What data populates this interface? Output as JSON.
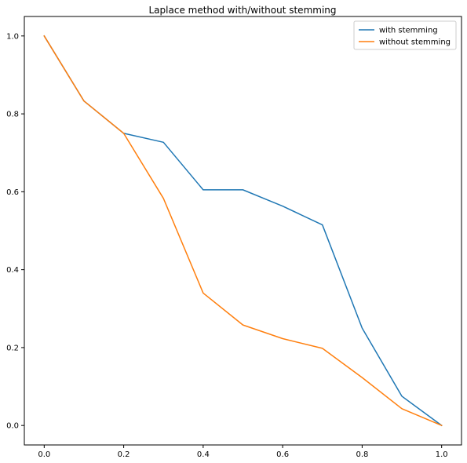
{
  "chart_data": {
    "type": "line",
    "title": "Laplace method with/without stemming",
    "xlabel": "",
    "ylabel": "",
    "xlim": [
      -0.05,
      1.05
    ],
    "ylim": [
      -0.05,
      1.05
    ],
    "xticks": [
      0.0,
      0.2,
      0.4,
      0.6,
      0.8,
      1.0
    ],
    "xtick_labels": [
      "0.0",
      "0.2",
      "0.4",
      "0.6",
      "0.8",
      "1.0"
    ],
    "yticks": [
      0.0,
      0.2,
      0.4,
      0.6,
      0.8,
      1.0
    ],
    "ytick_labels": [
      "0.0",
      "0.2",
      "0.4",
      "0.6",
      "0.8",
      "1.0"
    ],
    "grid": false,
    "legend_position": "top-right",
    "x": [
      0.0,
      0.1,
      0.2,
      0.3,
      0.4,
      0.5,
      0.6,
      0.7,
      0.8,
      0.9,
      1.0
    ],
    "series": [
      {
        "name": "with stemming",
        "color": "#1f77b4",
        "values": [
          1.0,
          0.833,
          0.75,
          0.727,
          0.605,
          0.605,
          0.563,
          0.515,
          0.25,
          0.075,
          0.0
        ]
      },
      {
        "name": "without stemming",
        "color": "#ff7f0e",
        "values": [
          1.0,
          0.833,
          0.75,
          0.583,
          0.34,
          0.258,
          0.223,
          0.198,
          0.123,
          0.043,
          0.0
        ]
      }
    ]
  }
}
